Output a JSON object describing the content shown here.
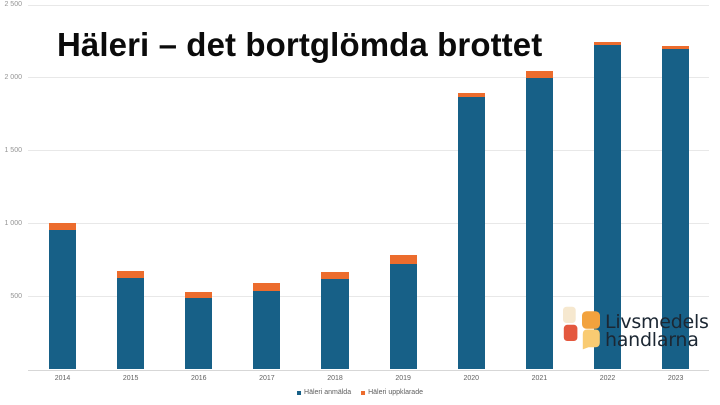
{
  "title": "Häleri – det bortglömda brottet",
  "chart_data": {
    "type": "bar",
    "stacked": true,
    "categories": [
      "2014",
      "2015",
      "2016",
      "2017",
      "2018",
      "2019",
      "2020",
      "2021",
      "2022",
      "2023"
    ],
    "series": [
      {
        "name": "Häleri anmälda",
        "color": "#176087",
        "values": [
          955,
          630,
          490,
          540,
          622,
          722,
          1868,
          2000,
          2228,
          2195
        ]
      },
      {
        "name": "Häleri uppklarade",
        "color": "#ec6c2d",
        "values": [
          48,
          45,
          42,
          51,
          44,
          60,
          30,
          46,
          21,
          27
        ]
      }
    ],
    "title": "Häleri – det bortglömda brottet",
    "xlabel": "",
    "ylabel": "",
    "ylim": [
      0,
      2500
    ],
    "ytick_step": 500,
    "ytick_labels": [
      "500",
      "1 000",
      "1 500",
      "2 000",
      "2 500"
    ],
    "grid": true,
    "legend_position": "bottom-center"
  },
  "legend": {
    "items": [
      {
        "label": "Häleri anmälda",
        "color": "#176087"
      },
      {
        "label": "Häleri uppklarade",
        "color": "#ec6c2d"
      }
    ]
  },
  "logo": {
    "line1": "Livsmedels",
    "line2": "handlarna",
    "colors": {
      "cream": "#f6e8cf",
      "orange": "#f2a23d",
      "red": "#e4583e",
      "yellow": "#f9cb72",
      "text": "#1c2733"
    }
  },
  "colors": {
    "background": "#ffffff",
    "bar_teal": "#176087",
    "bar_orange": "#ec6c2d",
    "gridline": "#e8e8e8",
    "axis_text": "#949494",
    "title_text": "#0b0b0b"
  }
}
